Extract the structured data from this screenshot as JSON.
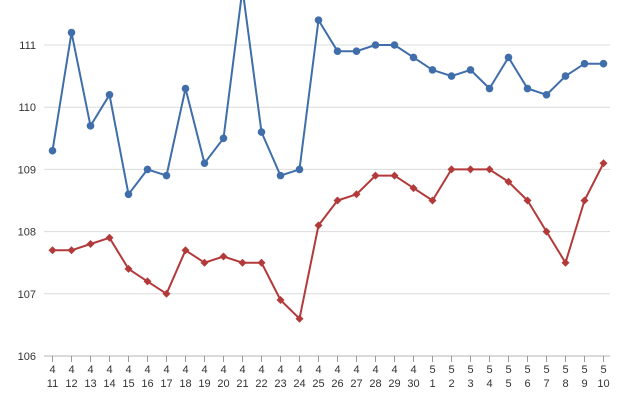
{
  "chart_data": {
    "type": "line",
    "title": "",
    "xlabel": "",
    "ylabel": "",
    "ylim": [
      106,
      111.8
    ],
    "yticks": [
      106,
      107,
      108,
      109,
      110,
      111
    ],
    "grid": true,
    "legend": "none",
    "categories": [
      {
        "month": "4",
        "day": "11"
      },
      {
        "month": "4",
        "day": "12"
      },
      {
        "month": "4",
        "day": "13"
      },
      {
        "month": "4",
        "day": "14"
      },
      {
        "month": "4",
        "day": "15"
      },
      {
        "month": "4",
        "day": "16"
      },
      {
        "month": "4",
        "day": "17"
      },
      {
        "month": "4",
        "day": "18"
      },
      {
        "month": "4",
        "day": "19"
      },
      {
        "month": "4",
        "day": "20"
      },
      {
        "month": "4",
        "day": "21"
      },
      {
        "month": "4",
        "day": "22"
      },
      {
        "month": "4",
        "day": "23"
      },
      {
        "month": "4",
        "day": "24"
      },
      {
        "month": "4",
        "day": "25"
      },
      {
        "month": "4",
        "day": "26"
      },
      {
        "month": "4",
        "day": "27"
      },
      {
        "month": "4",
        "day": "28"
      },
      {
        "month": "4",
        "day": "29"
      },
      {
        "month": "4",
        "day": "30"
      },
      {
        "month": "5",
        "day": "1"
      },
      {
        "month": "5",
        "day": "2"
      },
      {
        "month": "5",
        "day": "3"
      },
      {
        "month": "5",
        "day": "4"
      },
      {
        "month": "5",
        "day": "5"
      },
      {
        "month": "5",
        "day": "6"
      },
      {
        "month": "5",
        "day": "7"
      },
      {
        "month": "5",
        "day": "8"
      },
      {
        "month": "5",
        "day": "9"
      },
      {
        "month": "5",
        "day": "10"
      }
    ],
    "series": [
      {
        "color": "#3f6eaa",
        "marker": "circle",
        "values": [
          109.3,
          111.2,
          109.7,
          110.2,
          108.6,
          109.0,
          108.9,
          110.3,
          109.1,
          109.5,
          111.9,
          109.6,
          108.9,
          109.0,
          111.4,
          110.9,
          110.9,
          111.0,
          111.0,
          110.8,
          110.6,
          110.5,
          110.6,
          110.3,
          110.8,
          110.3,
          110.2,
          110.5,
          110.7,
          110.7
        ]
      },
      {
        "color": "#b33a3a",
        "marker": "diamond",
        "values": [
          107.7,
          107.7,
          107.8,
          107.9,
          107.4,
          107.2,
          107.0,
          107.7,
          107.5,
          107.6,
          107.5,
          107.5,
          106.9,
          106.6,
          108.1,
          108.5,
          108.6,
          108.9,
          108.9,
          108.7,
          108.5,
          109.0,
          109.0,
          109.0,
          108.8,
          108.5,
          108.0,
          107.5,
          108.5,
          109.1
        ]
      }
    ]
  }
}
